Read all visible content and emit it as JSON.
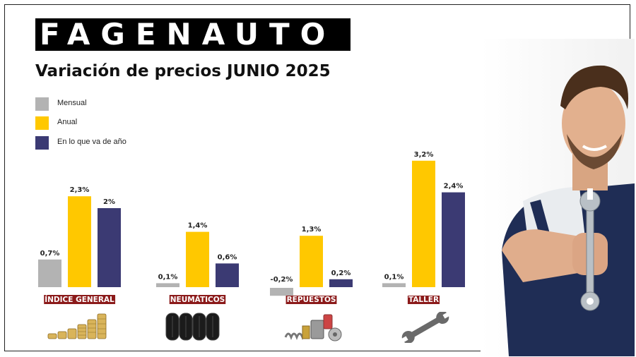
{
  "brand": {
    "logo_text": "FAGENAUTO"
  },
  "title": "Variación de precios JUNIO 2025",
  "legend": [
    {
      "label": "Mensual",
      "color": "#b3b3b3"
    },
    {
      "label": "Anual",
      "color": "#ffc800"
    },
    {
      "label": "En lo que va de año",
      "color": "#3b3a73"
    }
  ],
  "colors": {
    "category_label_bg": "#8b1a1a",
    "category_label_text": "#ffffff",
    "value_label": "#222222"
  },
  "chart_data": {
    "type": "bar",
    "title": "Variación de precios JUNIO 2025",
    "categories": [
      "ÍNDICE GENERAL",
      "NEUMÁTICOS",
      "REPUESTOS",
      "TALLER"
    ],
    "series": [
      {
        "name": "Mensual",
        "values": [
          0.7,
          0.1,
          -0.2,
          0.1
        ],
        "labels": [
          "0,7%",
          "0,1%",
          "-0,2%",
          "0,1%"
        ]
      },
      {
        "name": "Anual",
        "values": [
          2.3,
          1.4,
          1.3,
          3.2
        ],
        "labels": [
          "2,3%",
          "1,4%",
          "1,3%",
          "3,2%"
        ]
      },
      {
        "name": "En lo que va de año",
        "values": [
          2.0,
          0.6,
          0.2,
          2.4
        ],
        "labels": [
          "2%",
          "0,6%",
          "0,2%",
          "2,4%"
        ]
      }
    ],
    "category_icons": [
      "coin-stacks-icon",
      "tires-icon",
      "auto-parts-icon",
      "wrench-icon"
    ],
    "grid": false,
    "legend_position": "top-left"
  },
  "image": {
    "subject": "mechanic-holding-wrench"
  }
}
